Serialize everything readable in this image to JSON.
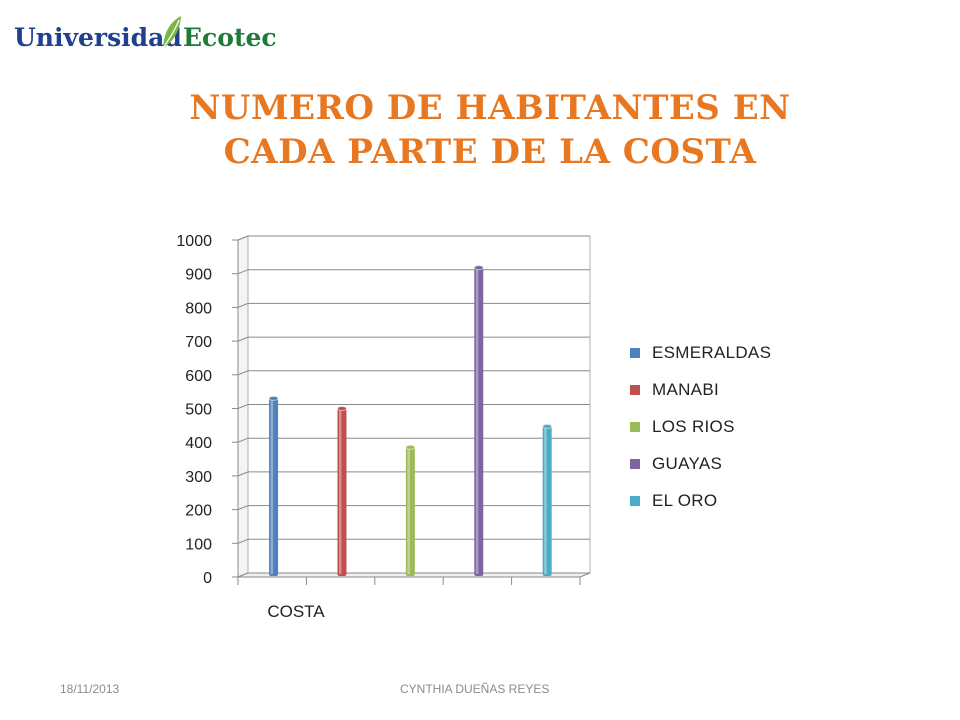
{
  "logo": {
    "text_left": "Universidad",
    "text_right": "Ecotec"
  },
  "slide": {
    "title_line1": "NUMERO DE HABITANTES EN",
    "title_line2": "CADA PARTE DE LA COSTA",
    "footer_date": "18/11/2013",
    "footer_author": "CYNTHIA DUEÑAS REYES"
  },
  "colors": {
    "title": "#E87722",
    "ESMERALDAS": "#4F81BD",
    "MANABI": "#C0504D",
    "LOS RIOS": "#9BBB59",
    "GUAYAS": "#8064A2",
    "EL ORO": "#4BACC6"
  },
  "chart_data": {
    "type": "bar",
    "categories": [
      "COSTA"
    ],
    "series": [
      {
        "name": "ESMERALDAS",
        "values": [
          530
        ],
        "color": "#4F81BD"
      },
      {
        "name": "MANABI",
        "values": [
          500
        ],
        "color": "#C0504D"
      },
      {
        "name": "LOS RIOS",
        "values": [
          385
        ],
        "color": "#9BBB59"
      },
      {
        "name": "GUAYAS",
        "values": [
          918
        ],
        "color": "#8064A2"
      },
      {
        "name": "EL ORO",
        "values": [
          447
        ],
        "color": "#4BACC6"
      }
    ],
    "ylim": [
      0,
      1000
    ],
    "yticks": [
      0,
      100,
      200,
      300,
      400,
      500,
      600,
      700,
      800,
      900,
      1000
    ],
    "grid": true,
    "legend": "right",
    "title": "NUMERO DE HABITANTES EN CADA PARTE DE LA COSTA",
    "xlabel": "",
    "ylabel": ""
  }
}
